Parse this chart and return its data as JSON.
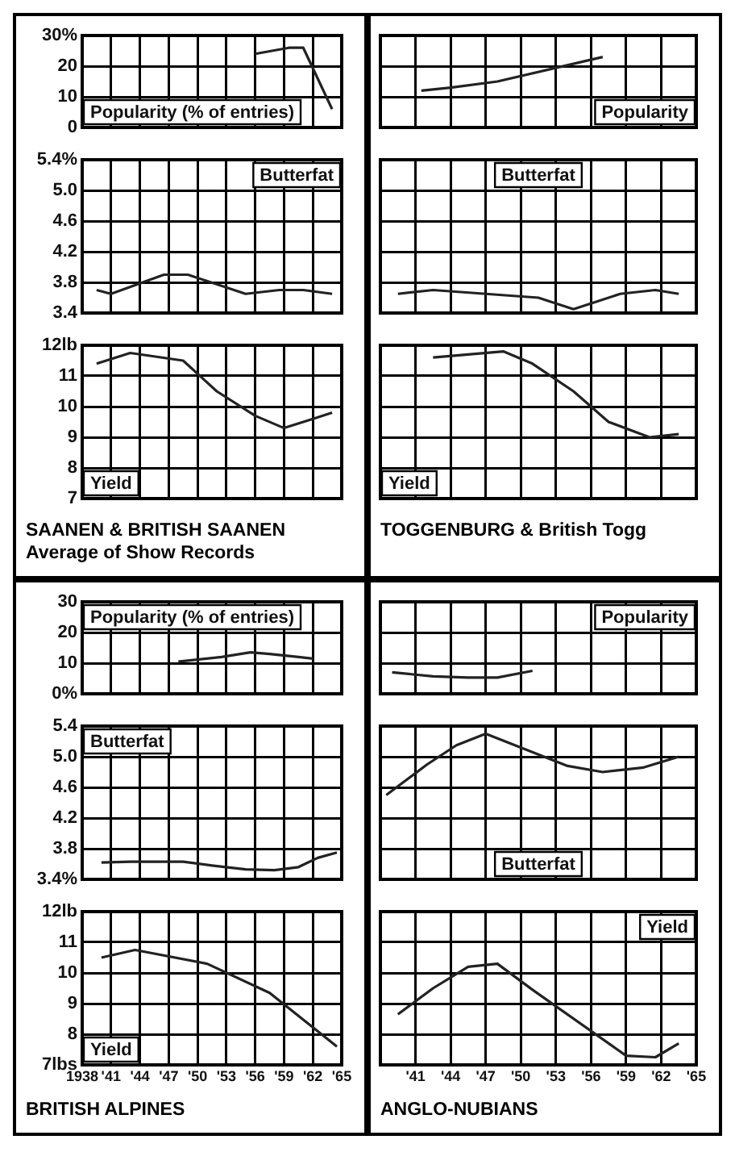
{
  "chart_data": [
    {
      "type": "line",
      "grid": true,
      "tick_labels": "y",
      "xlim": [
        1938,
        1965
      ],
      "xticks": [
        1938,
        1941,
        1944,
        1947,
        1950,
        1953,
        1956,
        1959,
        1962,
        1965
      ],
      "ylim": [
        0,
        30
      ],
      "yticks": [
        {
          "value": 30,
          "label": "30%"
        },
        20,
        10,
        0
      ],
      "series": [
        {
          "name": "Popularity (% of entries)",
          "color": "#222222",
          "x": [
            1956,
            1959.5,
            1961,
            1964
          ],
          "values": [
            24,
            26,
            26,
            6
          ]
        }
      ]
    },
    {
      "type": "line",
      "grid": true,
      "tick_labels": "y",
      "xlim": [
        1938,
        1965
      ],
      "xticks": [
        1938,
        1941,
        1944,
        1947,
        1950,
        1953,
        1956,
        1959,
        1962,
        1965
      ],
      "ylim": [
        3.4,
        5.4
      ],
      "yticks": [
        {
          "value": 5.4,
          "label": "5.4%"
        },
        {
          "value": 5,
          "label": "5.0"
        },
        4.6,
        4.2,
        3.8,
        3.4
      ],
      "series": [
        {
          "name": "Butterfat",
          "color": "#222222",
          "x": [
            1939.5,
            1941,
            1946.5,
            1949,
            1955,
            1958.5,
            1961,
            1964
          ],
          "values": [
            3.7,
            3.65,
            3.9,
            3.9,
            3.65,
            3.7,
            3.7,
            3.65
          ]
        }
      ]
    },
    {
      "type": "line",
      "title": "SAANEN & BRITISH SAANEN",
      "subtitle": "Average of Show Records",
      "grid": true,
      "tick_labels": "y",
      "xlim": [
        1938,
        1965
      ],
      "xticks": [
        1938,
        1941,
        1944,
        1947,
        1950,
        1953,
        1956,
        1959,
        1962,
        1965
      ],
      "ylim": [
        7,
        12
      ],
      "yticks": [
        {
          "value": 12,
          "label": "12lb"
        },
        11,
        10,
        9,
        8,
        7
      ],
      "series": [
        {
          "name": "Yield",
          "color": "#222222",
          "x": [
            1939.5,
            1943,
            1948.5,
            1952,
            1956,
            1959,
            1962,
            1964
          ],
          "values": [
            11.4,
            11.75,
            11.5,
            10.5,
            9.7,
            9.3,
            9.6,
            9.8
          ]
        }
      ]
    },
    {
      "type": "line",
      "grid": true,
      "tick_labels": false,
      "xlim": [
        1938,
        1965
      ],
      "xticks": [
        1938,
        1941,
        1944,
        1947,
        1950,
        1953,
        1956,
        1959,
        1962,
        1965
      ],
      "ylim": [
        0,
        30
      ],
      "yticks": [
        30,
        20,
        10,
        0
      ],
      "series": [
        {
          "name": "Popularity",
          "color": "#222222",
          "x": [
            1941.5,
            1944,
            1948,
            1957
          ],
          "values": [
            12,
            13,
            15,
            23
          ]
        }
      ]
    },
    {
      "type": "line",
      "grid": true,
      "tick_labels": false,
      "xlim": [
        1938,
        1965
      ],
      "xticks": [
        1938,
        1941,
        1944,
        1947,
        1950,
        1953,
        1956,
        1959,
        1962,
        1965
      ],
      "ylim": [
        3.4,
        5.4
      ],
      "yticks": [
        5.4,
        5,
        4.6,
        4.2,
        3.8,
        3.4
      ],
      "series": [
        {
          "name": "Butterfat",
          "color": "#222222",
          "x": [
            1939.5,
            1942.5,
            1951.5,
            1954.5,
            1958.5,
            1961.5,
            1963.5
          ],
          "values": [
            3.65,
            3.7,
            3.6,
            3.45,
            3.65,
            3.7,
            3.65
          ]
        }
      ]
    },
    {
      "type": "line",
      "title": "TOGGENBURG & British Togg",
      "grid": true,
      "tick_labels": false,
      "xlim": [
        1938,
        1965
      ],
      "xticks": [
        1938,
        1941,
        1944,
        1947,
        1950,
        1953,
        1956,
        1959,
        1962,
        1965
      ],
      "ylim": [
        7,
        12
      ],
      "yticks": [
        12,
        11,
        10,
        9,
        8,
        7
      ],
      "series": [
        {
          "name": "Yield",
          "color": "#222222",
          "x": [
            1942.5,
            1948.5,
            1951,
            1954.5,
            1957.5,
            1961,
            1963.5
          ],
          "values": [
            11.6,
            11.8,
            11.4,
            10.5,
            9.5,
            9,
            9.1
          ]
        }
      ]
    },
    {
      "type": "line",
      "grid": true,
      "tick_labels": "y",
      "xlim": [
        1938,
        1965
      ],
      "xticks": [
        1938,
        1941,
        1944,
        1947,
        1950,
        1953,
        1956,
        1959,
        1962,
        1965
      ],
      "ylim": [
        0,
        30
      ],
      "yticks": [
        30,
        20,
        10,
        {
          "value": 0,
          "label": "0%"
        }
      ],
      "series": [
        {
          "name": "Popularity (% of entries)",
          "color": "#222222",
          "x": [
            1948,
            1952.5,
            1955.5,
            1957.5,
            1960.5,
            1962
          ],
          "values": [
            10.5,
            12,
            13.5,
            13,
            12,
            11.5
          ]
        }
      ]
    },
    {
      "type": "line",
      "grid": true,
      "tick_labels": "y",
      "xlim": [
        1938,
        1965
      ],
      "xticks": [
        1938,
        1941,
        1944,
        1947,
        1950,
        1953,
        1956,
        1959,
        1962,
        1965
      ],
      "ylim": [
        3.4,
        5.4
      ],
      "yticks": [
        5.4,
        {
          "value": 5,
          "label": "5.0"
        },
        4.6,
        4.2,
        3.8,
        {
          "value": 3.4,
          "label": "3.4%"
        }
      ],
      "series": [
        {
          "name": "Butterfat",
          "color": "#222222",
          "x": [
            1940,
            1943,
            1946,
            1948.5,
            1951.5,
            1955,
            1958,
            1960.5,
            1962.5,
            1964.5
          ],
          "values": [
            3.62,
            3.63,
            3.63,
            3.63,
            3.58,
            3.53,
            3.52,
            3.56,
            3.68,
            3.75
          ]
        }
      ]
    },
    {
      "type": "line",
      "title": "BRITISH ALPINES",
      "grid": true,
      "xlim": [
        1938,
        1965
      ],
      "xticks": [
        1938,
        {
          "value": 1941,
          "label": "'41"
        },
        {
          "value": 1944,
          "label": "'44"
        },
        {
          "value": 1947,
          "label": "'47"
        },
        {
          "value": 1950,
          "label": "'50"
        },
        {
          "value": 1953,
          "label": "'53"
        },
        {
          "value": 1956,
          "label": "'56"
        },
        {
          "value": 1959,
          "label": "'59"
        },
        {
          "value": 1962,
          "label": "'62"
        },
        {
          "value": 1965,
          "label": "'65"
        }
      ],
      "ylim": [
        7,
        12
      ],
      "yticks": [
        {
          "value": 12,
          "label": "12lb"
        },
        11,
        10,
        9,
        8,
        {
          "value": 7,
          "label": "7lbs"
        }
      ],
      "series": [
        {
          "name": "Yield",
          "color": "#222222",
          "x": [
            1940,
            1943.5,
            1951,
            1957.5,
            1964.5
          ],
          "values": [
            10.5,
            10.75,
            10.3,
            9.35,
            7.6
          ]
        }
      ]
    },
    {
      "type": "line",
      "grid": true,
      "tick_labels": false,
      "xlim": [
        1938,
        1965
      ],
      "xticks": [
        1938,
        1941,
        1944,
        1947,
        1950,
        1953,
        1956,
        1959,
        1962,
        1965
      ],
      "ylim": [
        0,
        30
      ],
      "yticks": [
        30,
        20,
        10,
        0
      ],
      "series": [
        {
          "name": "Popularity",
          "color": "#222222",
          "x": [
            1939,
            1942.5,
            1945.5,
            1948,
            1951
          ],
          "values": [
            7,
            5.7,
            5.3,
            5.3,
            7.5
          ]
        }
      ]
    },
    {
      "type": "line",
      "grid": true,
      "tick_labels": false,
      "xlim": [
        1938,
        1965
      ],
      "xticks": [
        1938,
        1941,
        1944,
        1947,
        1950,
        1953,
        1956,
        1959,
        1962,
        1965
      ],
      "ylim": [
        3.4,
        5.4
      ],
      "yticks": [
        5.4,
        5,
        4.6,
        4.2,
        3.8,
        3.4
      ],
      "series": [
        {
          "name": "Butterfat",
          "color": "#222222",
          "x": [
            1938.5,
            1942,
            1944.5,
            1947,
            1954,
            1957,
            1960.5,
            1963.5
          ],
          "values": [
            4.5,
            4.9,
            5.15,
            5.3,
            4.88,
            4.8,
            4.86,
            5
          ]
        }
      ]
    },
    {
      "type": "line",
      "title": "ANGLO-NUBIANS",
      "grid": true,
      "tick_labels": "x",
      "xlim": [
        1938,
        1965
      ],
      "xticks": [
        {
          "value": 1938,
          "label": null
        },
        {
          "value": 1941,
          "label": "'41"
        },
        {
          "value": 1944,
          "label": "'44"
        },
        {
          "value": 1947,
          "label": "'47"
        },
        {
          "value": 1950,
          "label": "'50"
        },
        {
          "value": 1953,
          "label": "'53"
        },
        {
          "value": 1956,
          "label": "'56"
        },
        {
          "value": 1959,
          "label": "'59"
        },
        {
          "value": 1962,
          "label": "'62"
        },
        {
          "value": 1965,
          "label": "'65"
        }
      ],
      "ylim": [
        7,
        12
      ],
      "yticks": [
        12,
        11,
        10,
        9,
        8,
        7
      ],
      "series": [
        {
          "name": "Yield",
          "color": "#222222",
          "x": [
            1939.5,
            1942.5,
            1945.5,
            1948,
            1951,
            1959,
            1961.5,
            1963.5
          ],
          "values": [
            8.65,
            9.5,
            10.2,
            10.3,
            9.45,
            7.3,
            7.25,
            7.7
          ]
        }
      ]
    }
  ]
}
